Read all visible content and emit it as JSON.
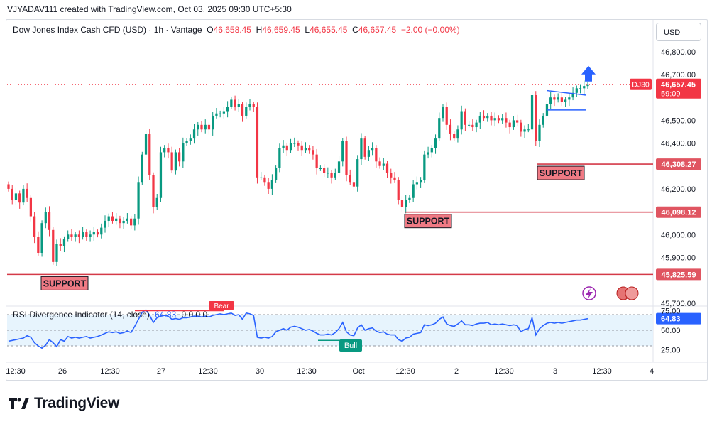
{
  "header": {
    "credit": "VJYADAV111 created with TradingView.com, Oct 03, 2025 09:30 UTC+5:30"
  },
  "toolbar": {
    "currency_label": "USD"
  },
  "legend": {
    "symbol": "Dow Jones Index Cash CFD (USD) · 1h · Vantage",
    "o_label": "O",
    "o_value": "46,658.45",
    "h_label": "H",
    "h_value": "46,659.45",
    "l_label": "L",
    "l_value": "46,655.45",
    "c_label": "C",
    "c_value": "46,657.45",
    "change": "−2.00 (−0.00%)"
  },
  "rsi_legend": {
    "name": "RSI Divergence Indicator (14, close)",
    "value": "64.83",
    "extra": "0 0 0 0"
  },
  "brand": {
    "name": "TradingView"
  },
  "colors": {
    "up": "#089981",
    "down": "#f23645",
    "rsi": "#2962ff",
    "support": "#e05561",
    "price_tag": "#f23645"
  },
  "chart_data": {
    "type": "candlestick",
    "symbol": "DJ30",
    "price_axis": {
      "ticks": [
        45700,
        45900,
        46000,
        46200,
        46400,
        46500,
        46700,
        46800
      ],
      "tick_labels": [
        "45,700.00",
        "45,900.00",
        "46,000.00",
        "46,200.00",
        "46,400.00",
        "46,500.00",
        "46,700.00",
        "46,800.00"
      ],
      "range": [
        45690,
        46840
      ]
    },
    "time_axis": {
      "labels": [
        "12:30",
        "26",
        "12:30",
        "27",
        "12:30",
        "30",
        "12:30",
        "Oct",
        "12:30",
        "2",
        "12:30",
        "3",
        "12:30",
        "4"
      ]
    },
    "candles_close": [
      46200,
      46150,
      46180,
      46140,
      46200,
      46160,
      46080,
      45990,
      45920,
      46050,
      46100,
      46020,
      45880,
      45960,
      45950,
      45980,
      46000,
      45990,
      46000,
      45990,
      46010,
      45990,
      46000,
      46010,
      46000,
      46030,
      46060,
      46080,
      46060,
      46070,
      46050,
      46060,
      46070,
      46040,
      46070,
      46230,
      46350,
      46440,
      46260,
      46120,
      46160,
      46360,
      46380,
      46360,
      46280,
      46360,
      46320,
      46400,
      46410,
      46420,
      46460,
      46480,
      46460,
      46480,
      46460,
      46520,
      46530,
      46530,
      46540,
      46560,
      46590,
      46560,
      46570,
      46520,
      46560,
      46570,
      46560,
      46250,
      46250,
      46230,
      46200,
      46240,
      46290,
      46380,
      46390,
      46370,
      46400,
      46400,
      46390,
      46370,
      46380,
      46370,
      46350,
      46290,
      46290,
      46270,
      46270,
      46250,
      46270,
      46320,
      46410,
      46260,
      46230,
      46210,
      46330,
      46420,
      46340,
      46370,
      46380,
      46320,
      46300,
      46310,
      46270,
      46250,
      46240,
      46150,
      46120,
      46150,
      46160,
      46220,
      46230,
      46240,
      46350,
      46360,
      46380,
      46420,
      46510,
      46560,
      46480,
      46440,
      46420,
      46460,
      46540,
      46480,
      46480,
      46470,
      46490,
      46520,
      46510,
      46520,
      46500,
      46510,
      46500,
      46510,
      46490,
      46470,
      46500,
      46490,
      46450,
      46460,
      46460,
      46610,
      46410,
      46480,
      46520,
      46570,
      46600,
      46590,
      46600,
      46580,
      46590,
      46600,
      46620,
      46640,
      46640,
      46650,
      46657.45
    ],
    "support_levels": [
      {
        "label": "SUPPORT",
        "price": 46308.27,
        "price_label": "46,308.27"
      },
      {
        "label": "SUPPORT",
        "price": 46098.12,
        "price_label": "46,098.12"
      },
      {
        "label": "SUPPORT",
        "price": 45825.59,
        "price_label": "45,825.59"
      }
    ],
    "current_price": {
      "symbol": "DJ30",
      "price": 46657.45,
      "price_label": "46,657.45",
      "countdown": "59:09"
    },
    "rsi": {
      "name": "RSI Divergence Indicator (14, close)",
      "ticks": [
        25,
        50,
        75
      ],
      "tick_labels": [
        "25.00",
        "50.00",
        "75.00"
      ],
      "band": [
        30,
        70
      ],
      "current": 64.83,
      "current_label": "64.83",
      "signals": [
        {
          "label": "Bull",
          "type": "bull"
        },
        {
          "label": "Bear",
          "type": "bear"
        }
      ],
      "values": [
        36,
        37,
        38,
        39,
        40,
        43,
        41,
        34,
        30,
        27,
        31,
        38,
        34,
        29,
        38,
        36,
        42,
        40,
        41,
        40,
        41,
        42,
        40,
        41,
        42,
        44,
        46,
        48,
        47,
        48,
        46,
        47,
        49,
        47,
        55,
        64,
        73,
        76,
        69,
        60,
        66,
        68,
        69,
        68,
        64,
        65,
        64,
        66,
        66,
        67,
        68,
        68,
        67,
        68,
        67,
        69,
        70,
        71,
        70,
        71,
        72,
        69,
        70,
        64,
        72,
        71,
        69,
        41,
        40,
        41,
        40,
        42,
        48,
        50,
        52,
        50,
        54,
        55,
        54,
        52,
        50,
        51,
        49,
        46,
        44,
        44,
        45,
        44,
        47,
        52,
        60,
        48,
        44,
        43,
        53,
        57,
        50,
        52,
        53,
        49,
        47,
        48,
        45,
        44,
        44,
        38,
        36,
        40,
        41,
        45,
        46,
        47,
        57,
        56,
        57,
        59,
        64,
        67,
        58,
        56,
        55,
        58,
        62,
        57,
        57,
        56,
        58,
        59,
        59,
        60,
        57,
        58,
        57,
        58,
        57,
        56,
        57,
        56,
        48,
        51,
        52,
        66,
        44,
        52,
        56,
        59,
        60,
        59,
        60,
        59,
        60,
        61,
        62,
        63,
        63,
        64,
        64.83
      ]
    }
  }
}
